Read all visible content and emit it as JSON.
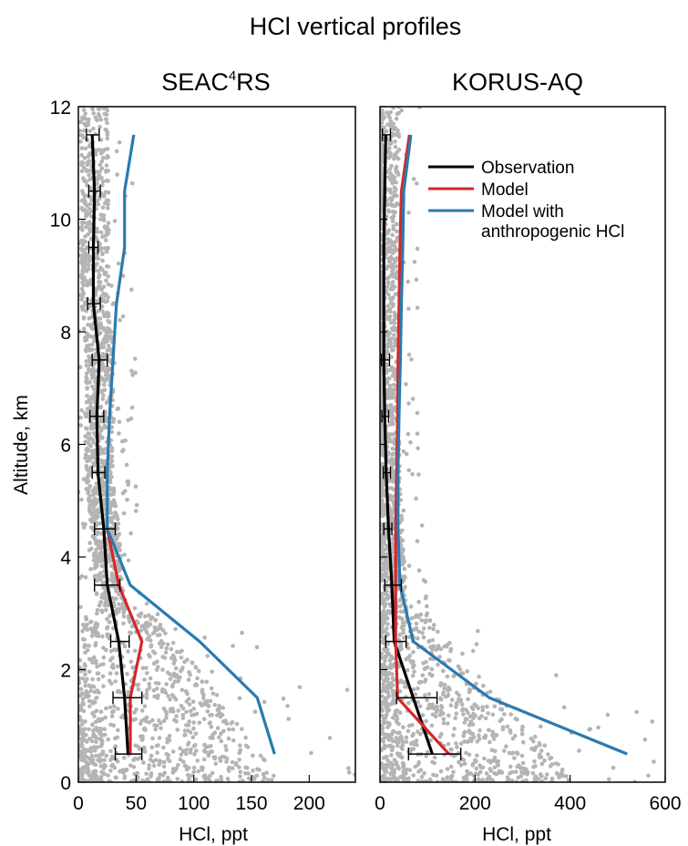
{
  "figure": {
    "title": "HCl vertical profiles"
  },
  "legend": {
    "placement": "top-right of KORUS-AQ panel",
    "entries": [
      {
        "label": "Observation",
        "color": "#000000"
      },
      {
        "label": "Model",
        "color": "#d62728"
      },
      {
        "label": "Model with",
        "label2": "anthropogenic HCl",
        "color": "#2a7ab0"
      }
    ]
  },
  "chart_data": [
    {
      "type": "line",
      "title": "SEAC⁴RS",
      "title_main": "SEAC",
      "title_sup": "4",
      "title_tail": "RS",
      "xlabel": "HCl, ppt",
      "ylabel": "Altitude, km",
      "xlim": [
        0,
        240
      ],
      "ylim": [
        0,
        12
      ],
      "xticks": [
        0,
        50,
        100,
        150,
        200
      ],
      "yticks": [
        0,
        2,
        4,
        6,
        8,
        10,
        12
      ],
      "grid": false,
      "scatter_color": "#b4b4b4",
      "series": [
        {
          "name": "Observation",
          "color": "#000000",
          "points": [
            [
              12,
              11.5
            ],
            [
              14,
              10.5
            ],
            [
              13,
              9.5
            ],
            [
              13,
              8.5
            ],
            [
              18,
              7.5
            ],
            [
              16,
              6.5
            ],
            [
              17,
              5.5
            ],
            [
              22,
              4.5
            ],
            [
              25,
              3.5
            ],
            [
              35,
              2.5
            ],
            [
              40,
              1.5
            ],
            [
              43,
              0.5
            ]
          ]
        },
        {
          "name": "Model",
          "color": "#d62728",
          "points": [
            [
              25,
              4.5
            ],
            [
              35,
              3.5
            ],
            [
              55,
              2.5
            ],
            [
              45,
              1.5
            ],
            [
              45,
              0.5
            ]
          ]
        },
        {
          "name": "Model with anthropogenic HCl",
          "color": "#2a7ab0",
          "points": [
            [
              48,
              11.5
            ],
            [
              40,
              10.5
            ],
            [
              40,
              9.5
            ],
            [
              33,
              8.5
            ],
            [
              30,
              7.5
            ],
            [
              27,
              6.5
            ],
            [
              25,
              5.5
            ],
            [
              25,
              4.5
            ],
            [
              45,
              3.5
            ],
            [
              105,
              2.5
            ],
            [
              155,
              1.5
            ],
            [
              170,
              0.5
            ]
          ]
        }
      ],
      "error_bars": [
        {
          "y": 11.5,
          "xmin": 7,
          "xmax": 18
        },
        {
          "y": 10.5,
          "xmin": 9,
          "xmax": 19
        },
        {
          "y": 9.5,
          "xmin": 9,
          "xmax": 17
        },
        {
          "y": 8.5,
          "xmin": 8,
          "xmax": 19
        },
        {
          "y": 7.5,
          "xmin": 12,
          "xmax": 25
        },
        {
          "y": 6.5,
          "xmin": 10,
          "xmax": 22
        },
        {
          "y": 5.5,
          "xmin": 12,
          "xmax": 23
        },
        {
          "y": 4.5,
          "xmin": 14,
          "xmax": 32
        },
        {
          "y": 3.5,
          "xmin": 14,
          "xmax": 36
        },
        {
          "y": 2.5,
          "xmin": 28,
          "xmax": 44
        },
        {
          "y": 1.5,
          "xmin": 30,
          "xmax": 55
        },
        {
          "y": 0.5,
          "xmin": 32,
          "xmax": 55
        }
      ]
    },
    {
      "type": "line",
      "title": "KORUS-AQ",
      "xlabel": "HCl, ppt",
      "ylabel": "",
      "xlim": [
        0,
        600
      ],
      "ylim": [
        0,
        12
      ],
      "xticks": [
        0,
        200,
        400,
        600
      ],
      "yticks": [
        0,
        2,
        4,
        6,
        8,
        10,
        12
      ],
      "grid": false,
      "scatter_color": "#b4b4b4",
      "series": [
        {
          "name": "Observation",
          "color": "#000000",
          "points": [
            [
              12,
              11.5
            ],
            [
              10,
              10.5
            ],
            [
              8,
              9.5
            ],
            [
              8,
              8.5
            ],
            [
              8,
              7.5
            ],
            [
              10,
              6.5
            ],
            [
              13,
              5.5
            ],
            [
              18,
              4.5
            ],
            [
              25,
              3.5
            ],
            [
              30,
              2.5
            ],
            [
              70,
              1.5
            ],
            [
              110,
              0.5
            ]
          ]
        },
        {
          "name": "Model",
          "color": "#d62728",
          "points": [
            [
              62,
              11.5
            ],
            [
              45,
              10.5
            ],
            [
              42,
              9.5
            ],
            [
              40,
              8.5
            ],
            [
              38,
              7.5
            ],
            [
              37,
              6.5
            ],
            [
              35,
              5.5
            ],
            [
              33,
              4.5
            ],
            [
              33,
              3.5
            ],
            [
              33,
              2.5
            ],
            [
              37,
              1.5
            ],
            [
              145,
              0.5
            ]
          ]
        },
        {
          "name": "Model with anthropogenic HCl",
          "color": "#2a7ab0",
          "points": [
            [
              65,
              11.5
            ],
            [
              50,
              10.5
            ],
            [
              48,
              9.5
            ],
            [
              45,
              8.5
            ],
            [
              43,
              7.5
            ],
            [
              40,
              6.5
            ],
            [
              38,
              5.5
            ],
            [
              38,
              4.5
            ],
            [
              42,
              3.5
            ],
            [
              70,
              2.5
            ],
            [
              230,
              1.5
            ],
            [
              520,
              0.5
            ]
          ]
        }
      ],
      "error_bars": [
        {
          "y": 11.5,
          "xmin": 5,
          "xmax": 22
        },
        {
          "y": 7.5,
          "xmin": 3,
          "xmax": 20
        },
        {
          "y": 6.5,
          "xmin": 4,
          "xmax": 18
        },
        {
          "y": 5.5,
          "xmin": 7,
          "xmax": 22
        },
        {
          "y": 4.5,
          "xmin": 8,
          "xmax": 25
        },
        {
          "y": 3.5,
          "xmin": 10,
          "xmax": 45
        },
        {
          "y": 2.5,
          "xmin": 12,
          "xmax": 55
        },
        {
          "y": 1.5,
          "xmin": 35,
          "xmax": 120
        },
        {
          "y": 0.5,
          "xmin": 60,
          "xmax": 170
        }
      ]
    }
  ]
}
